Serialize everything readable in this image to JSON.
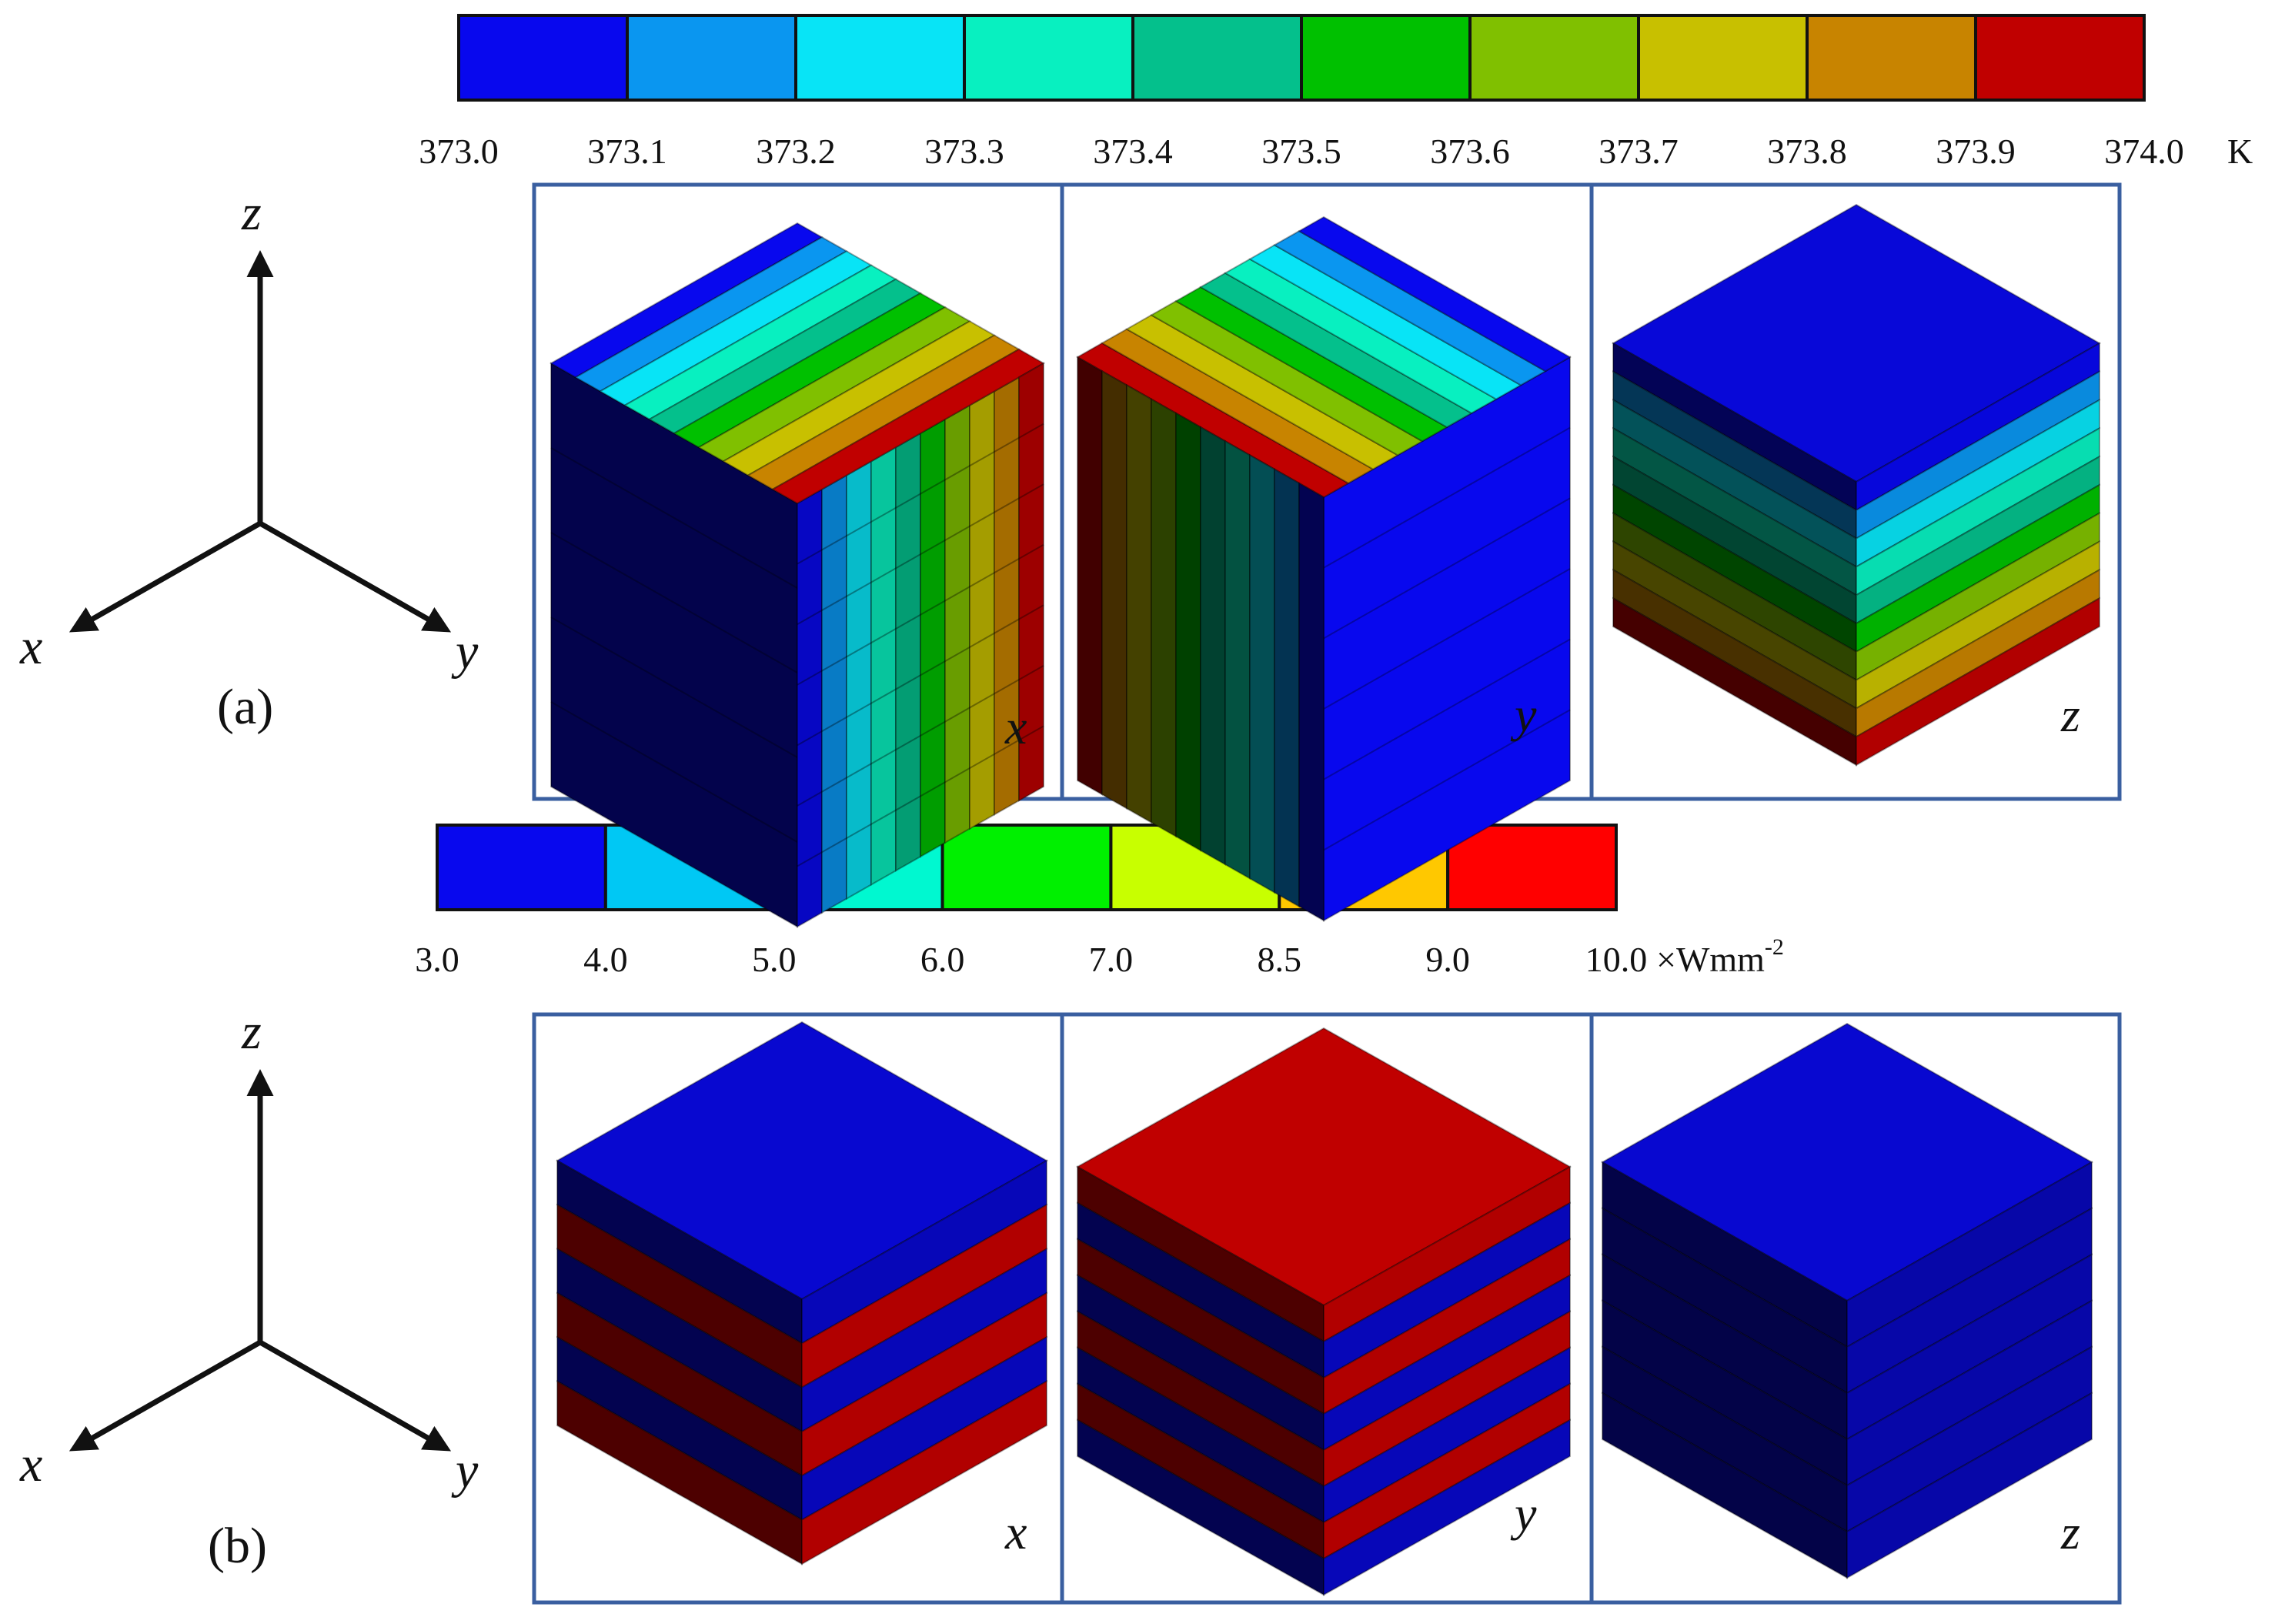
{
  "temperature_legend": {
    "ticks": [
      "373.0",
      "373.1",
      "373.2",
      "373.3",
      "373.4",
      "373.5",
      "373.6",
      "373.7",
      "373.8",
      "373.9",
      "374.0"
    ],
    "unit": "K",
    "colors": [
      "#0808ee",
      "#0a96f0",
      "#08e4f6",
      "#08f0c0",
      "#04c08c",
      "#00c000",
      "#80c000",
      "#c8c000",
      "#c88400",
      "#c00000"
    ]
  },
  "flux_legend": {
    "ticks": [
      "3.0",
      "4.0",
      "5.0",
      "6.0",
      "7.0",
      "8.5",
      "9.0",
      "10.0"
    ],
    "unit_prefix": "×Wmm",
    "unit_exp": "-2",
    "colors": [
      "#0808ee",
      "#00c8f4",
      "#00f8d0",
      "#00f000",
      "#c8ff00",
      "#ffc800",
      "#ff0000"
    ]
  },
  "axes": {
    "x": "x",
    "y": "y",
    "z": "z"
  },
  "panel_a": {
    "label": "(a)",
    "views": [
      "x",
      "y",
      "z"
    ]
  },
  "panel_b": {
    "label": "(b)",
    "views": [
      "x",
      "y",
      "z"
    ]
  },
  "heat_colors": {
    "blue": "#0808c8",
    "red": "#c00000"
  }
}
